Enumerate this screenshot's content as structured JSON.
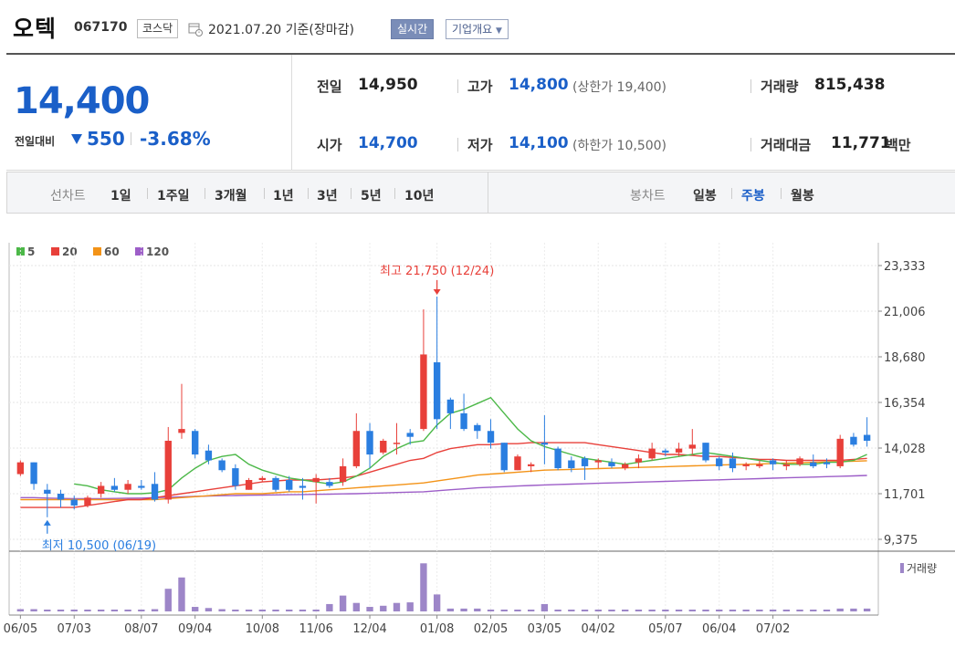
{
  "header": {
    "name": "오텍",
    "code": "067170",
    "market": "코스닥",
    "as_of": "2021.07.20 기준(장마감)",
    "realtime_label": "실시간",
    "overview_label": "기업개요"
  },
  "summary": {
    "current_price": "14,400",
    "change_label": "전일대비",
    "change_value": "550",
    "change_pct": "-3.68%",
    "prev_close_label": "전일",
    "prev_close": "14,950",
    "high_label": "고가",
    "high": "14,800",
    "upper_limit": "(상한가 19,400)",
    "volume_label": "거래량",
    "volume": "815,438",
    "open_label": "시가",
    "open": "14,700",
    "low_label": "저가",
    "low": "14,100",
    "lower_limit": "(하한가 10,500)",
    "amount_label": "거래대금",
    "amount": "11,771",
    "amount_unit": "백만",
    "down_color": "#1a5fc8"
  },
  "toolbar": {
    "line_label": "선차트",
    "line_periods": [
      "1일",
      "1주일",
      "3개월",
      "1년",
      "3년",
      "5년",
      "10년"
    ],
    "candle_label": "봉차트",
    "candle_periods": [
      "일봉",
      "주봉",
      "월봉"
    ],
    "candle_active": "주봉"
  },
  "chart_data": {
    "type": "candlestick",
    "legend": [
      {
        "name": "5",
        "color": "#4cb848"
      },
      {
        "name": "20",
        "color": "#e8403a"
      },
      {
        "name": "60",
        "color": "#f39317"
      },
      {
        "name": "120",
        "color": "#9d5ec8"
      }
    ],
    "y_ticks": [
      "23,333",
      "21,006",
      "18,680",
      "16,354",
      "14,028",
      "11,701",
      "9,375"
    ],
    "y_tick_values": [
      23333,
      21006,
      18680,
      16354,
      14028,
      11701,
      9375
    ],
    "x_ticks": [
      "06/05",
      "07/03",
      "08/07",
      "09/04",
      "10/08",
      "11/06",
      "12/04",
      "01/08",
      "02/05",
      "03/05",
      "04/02",
      "05/07",
      "06/04",
      "07/02"
    ],
    "x_tick_index": [
      0,
      4,
      9,
      13,
      18,
      22,
      26,
      31,
      35,
      39,
      43,
      48,
      52,
      56
    ],
    "high_annotation": "최고 21,750 (12/24)",
    "low_annotation": "최저 10,500 (06/19)",
    "volume_label": "거래량",
    "up_color": "#e8403a",
    "down_color": "#2a7ee0",
    "volume_color": "#9d86c8",
    "candles": [
      {
        "o": 12700,
        "h": 13400,
        "l": 12600,
        "c": 13300
      },
      {
        "o": 13300,
        "h": 13300,
        "l": 11900,
        "c": 12200
      },
      {
        "o": 11900,
        "h": 12200,
        "l": 10500,
        "c": 11700
      },
      {
        "o": 11700,
        "h": 11900,
        "l": 11000,
        "c": 11400
      },
      {
        "o": 11400,
        "h": 11600,
        "l": 10900,
        "c": 11100
      },
      {
        "o": 11100,
        "h": 11600,
        "l": 11000,
        "c": 11500
      },
      {
        "o": 11700,
        "h": 12300,
        "l": 11500,
        "c": 12100
      },
      {
        "o": 12100,
        "h": 12500,
        "l": 11800,
        "c": 11900
      },
      {
        "o": 11900,
        "h": 12400,
        "l": 11700,
        "c": 12200
      },
      {
        "o": 12100,
        "h": 12400,
        "l": 11900,
        "c": 12000
      },
      {
        "o": 12200,
        "h": 12800,
        "l": 11300,
        "c": 11400
      },
      {
        "o": 11400,
        "h": 15100,
        "l": 11200,
        "c": 14400
      },
      {
        "o": 14800,
        "h": 17300,
        "l": 14500,
        "c": 15000
      },
      {
        "o": 14900,
        "h": 15000,
        "l": 13500,
        "c": 13700
      },
      {
        "o": 13900,
        "h": 14200,
        "l": 13200,
        "c": 13400
      },
      {
        "o": 13400,
        "h": 13500,
        "l": 12800,
        "c": 12900
      },
      {
        "o": 13000,
        "h": 13200,
        "l": 11900,
        "c": 12100
      },
      {
        "o": 11900,
        "h": 12500,
        "l": 11900,
        "c": 12400
      },
      {
        "o": 12400,
        "h": 12600,
        "l": 12300,
        "c": 12500
      },
      {
        "o": 12500,
        "h": 12600,
        "l": 11800,
        "c": 11900
      },
      {
        "o": 12400,
        "h": 12600,
        "l": 11800,
        "c": 11900
      },
      {
        "o": 12100,
        "h": 12500,
        "l": 11400,
        "c": 12000
      },
      {
        "o": 12300,
        "h": 12700,
        "l": 11200,
        "c": 12500
      },
      {
        "o": 12300,
        "h": 12500,
        "l": 12000,
        "c": 12100
      },
      {
        "o": 12300,
        "h": 13500,
        "l": 12100,
        "c": 13100
      },
      {
        "o": 13100,
        "h": 15800,
        "l": 13000,
        "c": 14900
      },
      {
        "o": 14900,
        "h": 15300,
        "l": 13000,
        "c": 13700
      },
      {
        "o": 13800,
        "h": 14500,
        "l": 13700,
        "c": 14400
      },
      {
        "o": 14300,
        "h": 15300,
        "l": 13700,
        "c": 14300
      },
      {
        "o": 14800,
        "h": 15000,
        "l": 14200,
        "c": 14600
      },
      {
        "o": 15000,
        "h": 21100,
        "l": 14900,
        "c": 18800
      },
      {
        "o": 18400,
        "h": 21750,
        "l": 15000,
        "c": 15500
      },
      {
        "o": 16500,
        "h": 16600,
        "l": 15000,
        "c": 15800
      },
      {
        "o": 15800,
        "h": 16800,
        "l": 14900,
        "c": 15000
      },
      {
        "o": 15200,
        "h": 15300,
        "l": 14500,
        "c": 14900
      },
      {
        "o": 14900,
        "h": 15500,
        "l": 14000,
        "c": 14300
      },
      {
        "o": 14300,
        "h": 14300,
        "l": 12800,
        "c": 12900
      },
      {
        "o": 12900,
        "h": 13700,
        "l": 12900,
        "c": 13600
      },
      {
        "o": 13100,
        "h": 13300,
        "l": 12800,
        "c": 13200
      },
      {
        "o": 14300,
        "h": 15700,
        "l": 13200,
        "c": 14200
      },
      {
        "o": 14000,
        "h": 14100,
        "l": 12900,
        "c": 13000
      },
      {
        "o": 13400,
        "h": 13600,
        "l": 12800,
        "c": 13000
      },
      {
        "o": 13500,
        "h": 13600,
        "l": 12400,
        "c": 13100
      },
      {
        "o": 13300,
        "h": 13500,
        "l": 13000,
        "c": 13400
      },
      {
        "o": 13300,
        "h": 13500,
        "l": 13000,
        "c": 13100
      },
      {
        "o": 13000,
        "h": 13300,
        "l": 12900,
        "c": 13200
      },
      {
        "o": 13300,
        "h": 13700,
        "l": 13000,
        "c": 13500
      },
      {
        "o": 13500,
        "h": 14300,
        "l": 13400,
        "c": 14000
      },
      {
        "o": 13900,
        "h": 14000,
        "l": 13600,
        "c": 13800
      },
      {
        "o": 13800,
        "h": 14300,
        "l": 13600,
        "c": 14000
      },
      {
        "o": 14000,
        "h": 15000,
        "l": 13700,
        "c": 14200
      },
      {
        "o": 14300,
        "h": 14300,
        "l": 13300,
        "c": 13400
      },
      {
        "o": 13500,
        "h": 13600,
        "l": 12900,
        "c": 13100
      },
      {
        "o": 13500,
        "h": 13800,
        "l": 12800,
        "c": 13000
      },
      {
        "o": 13100,
        "h": 13300,
        "l": 12900,
        "c": 13200
      },
      {
        "o": 13100,
        "h": 13400,
        "l": 13000,
        "c": 13200
      },
      {
        "o": 13400,
        "h": 13500,
        "l": 12900,
        "c": 13200
      },
      {
        "o": 13100,
        "h": 13400,
        "l": 12900,
        "c": 13200
      },
      {
        "o": 13200,
        "h": 13600,
        "l": 13100,
        "c": 13500
      },
      {
        "o": 13300,
        "h": 13700,
        "l": 13000,
        "c": 13100
      },
      {
        "o": 13300,
        "h": 13500,
        "l": 13000,
        "c": 13200
      },
      {
        "o": 13100,
        "h": 14700,
        "l": 13000,
        "c": 14500
      },
      {
        "o": 14600,
        "h": 14800,
        "l": 14100,
        "c": 14200
      },
      {
        "o": 14700,
        "h": 15600,
        "l": 14100,
        "c": 14400
      }
    ],
    "volumes": [
      0.04,
      0.04,
      0.03,
      0.02,
      0.02,
      0.02,
      0.02,
      0.02,
      0.02,
      0.02,
      0.04,
      0.4,
      0.6,
      0.08,
      0.06,
      0.04,
      0.03,
      0,
      0,
      0.02,
      0.02,
      0.02,
      0.03,
      0.13,
      0.28,
      0.15,
      0.08,
      0.1,
      0.15,
      0.16,
      0.85,
      0.3,
      0.05,
      0.05,
      0.05,
      0.03,
      0.03,
      0.02,
      0.02,
      0.13,
      0.03,
      0.01,
      0,
      0,
      0,
      0,
      0.02,
      0,
      0.02,
      0.02,
      0,
      0,
      0,
      0,
      0,
      0,
      0,
      0.02,
      0,
      0,
      0.02,
      0.05,
      0.05,
      0.05
    ],
    "ma5": [
      null,
      null,
      null,
      null,
      12200,
      12100,
      11900,
      11800,
      11700,
      11700,
      11750,
      11900,
      12500,
      13000,
      13400,
      13600,
      13700,
      13200,
      12900,
      12700,
      12500,
      12400,
      12300,
      12200,
      12300,
      12600,
      13000,
      13600,
      14000,
      14300,
      14400,
      15200,
      15800,
      16000,
      16300,
      16600,
      15800,
      15000,
      14400,
      14100,
      13900,
      13700,
      13500,
      13400,
      13300,
      13200,
      13300,
      13400,
      13500,
      13600,
      13700,
      13800,
      13700,
      13600,
      13500,
      13400,
      13300,
      13200,
      13200,
      13200,
      13300,
      13300,
      13400,
      13700
    ],
    "ma20": [
      11000,
      11000,
      11000,
      11000,
      11000,
      11100,
      11200,
      11300,
      11400,
      11400,
      11500,
      11600,
      11700,
      11800,
      11900,
      12000,
      12100,
      12200,
      12300,
      12350,
      12400,
      12400,
      12400,
      12450,
      12500,
      12600,
      12800,
      13000,
      13200,
      13400,
      13500,
      13800,
      14000,
      14100,
      14200,
      14200,
      14250,
      14250,
      14300,
      14300,
      14300,
      14300,
      14300,
      14200,
      14100,
      14000,
      13900,
      13800,
      13700,
      13700,
      13650,
      13600,
      13600,
      13550,
      13500,
      13450,
      13450,
      13400,
      13400,
      13400,
      13400,
      13400,
      13450,
      13500
    ],
    "ma60": [
      11400,
      11400,
      11400,
      11400,
      11400,
      11400,
      11400,
      11400,
      11400,
      11400,
      11400,
      11450,
      11500,
      11550,
      11600,
      11650,
      11700,
      11700,
      11700,
      11750,
      11800,
      11800,
      11850,
      11900,
      11950,
      12000,
      12050,
      12100,
      12150,
      12200,
      12250,
      12350,
      12450,
      12550,
      12650,
      12700,
      12750,
      12800,
      12850,
      12900,
      12920,
      12940,
      12960,
      12980,
      13000,
      13020,
      13040,
      13060,
      13080,
      13100,
      13120,
      13140,
      13160,
      13180,
      13200,
      13220,
      13240,
      13260,
      13280,
      13300,
      13320,
      13340,
      13360,
      13380
    ],
    "ma120": [
      11500,
      11500,
      11480,
      11460,
      11450,
      11450,
      11450,
      11460,
      11470,
      11480,
      11500,
      11520,
      11540,
      11560,
      11580,
      11600,
      11610,
      11620,
      11630,
      11640,
      11650,
      11660,
      11670,
      11680,
      11690,
      11700,
      11720,
      11740,
      11760,
      11780,
      11800,
      11850,
      11900,
      11950,
      12000,
      12030,
      12060,
      12090,
      12120,
      12150,
      12170,
      12190,
      12210,
      12230,
      12250,
      12270,
      12290,
      12310,
      12330,
      12350,
      12370,
      12390,
      12410,
      12430,
      12450,
      12470,
      12490,
      12510,
      12530,
      12550,
      12570,
      12590,
      12610,
      12630
    ]
  }
}
